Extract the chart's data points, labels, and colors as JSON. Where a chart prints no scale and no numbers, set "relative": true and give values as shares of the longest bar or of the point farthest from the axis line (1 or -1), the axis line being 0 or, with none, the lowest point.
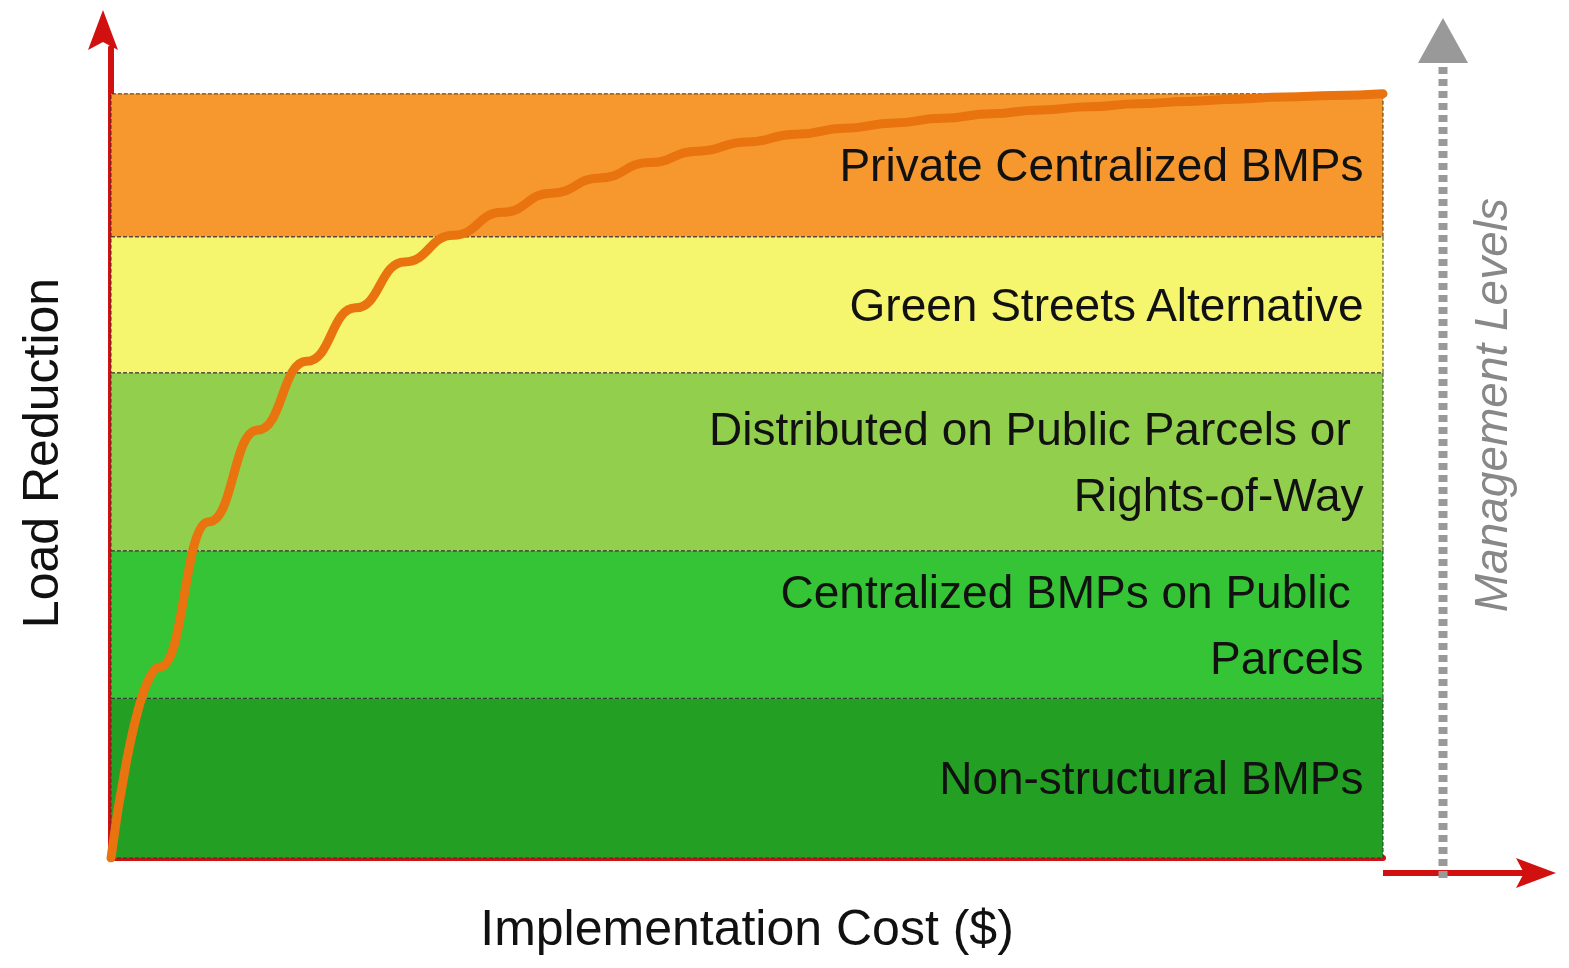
{
  "chart_data": {
    "type": "line",
    "relative": true,
    "xlabel": "Implementation Cost ($)",
    "ylabel": "Load Reduction",
    "categories": [
      null,
      null,
      null,
      null,
      null,
      null,
      null,
      null,
      null,
      null,
      null,
      null,
      null,
      null,
      null,
      null,
      null,
      null,
      null,
      null,
      null,
      null,
      null,
      null,
      null,
      null,
      null
    ],
    "series": [
      {
        "color": "#e8730f",
        "values": [
          0,
          0.25,
          0.44,
          0.56,
          0.65,
          0.72,
          0.78,
          0.815,
          0.845,
          0.87,
          0.89,
          0.91,
          0.925,
          0.937,
          0.947,
          0.955,
          0.962,
          0.968,
          0.974,
          0.979,
          0.983,
          0.987,
          0.99,
          0.993,
          0.996,
          0.998,
          1
        ]
      }
    ],
    "bands": [
      {
        "axis": "y",
        "from": 0,
        "to": 0.209,
        "label": "Non-structural BMPs",
        "color": "#23a023"
      },
      {
        "axis": "y",
        "from": 0.209,
        "to": 0.402,
        "label": "Centralized BMPs on Public Parcels",
        "color": "#35c435"
      },
      {
        "axis": "y",
        "from": 0.402,
        "to": 0.635,
        "label": "Distributed on Public Parcels or Rights-of-Way",
        "color": "#92cf4c"
      },
      {
        "axis": "y",
        "from": 0.635,
        "to": 0.813,
        "label": "Green Streets Alternative",
        "color": "#f6f56e"
      },
      {
        "axis": "y",
        "from": 0.813,
        "to": 1,
        "label": "Private Centralized BMPs",
        "color": "#f7982f"
      }
    ],
    "annotations": [
      "Management Levels"
    ],
    "grid": false,
    "line_style": "solid"
  }
}
